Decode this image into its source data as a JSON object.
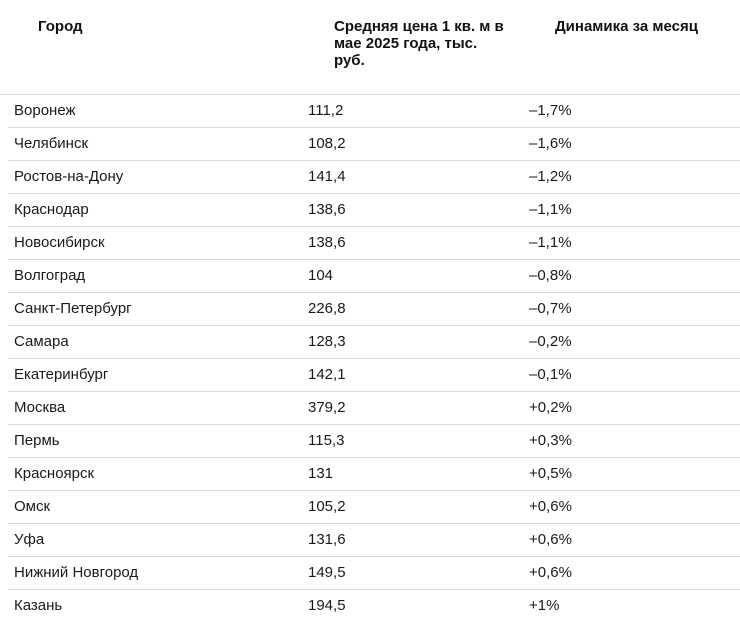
{
  "table": {
    "headers": {
      "city": "Город",
      "price": "Средняя цена 1 кв. м в мае 2025 года, тыс. руб.",
      "dynamics": "Динамика за месяц"
    },
    "rows": [
      {
        "city": "Воронеж",
        "price": "111,2",
        "dynamics": "–1,7%"
      },
      {
        "city": "Челябинск",
        "price": "108,2",
        "dynamics": "–1,6%"
      },
      {
        "city": "Ростов-на-Дону",
        "price": "141,4",
        "dynamics": "–1,2%"
      },
      {
        "city": "Краснодар",
        "price": "138,6",
        "dynamics": "–1,1%"
      },
      {
        "city": "Новосибирск",
        "price": "138,6",
        "dynamics": "–1,1%"
      },
      {
        "city": "Волгоград",
        "price": "104",
        "dynamics": "–0,8%"
      },
      {
        "city": "Санкт-Петербург",
        "price": "226,8",
        "dynamics": "–0,7%"
      },
      {
        "city": "Самара",
        "price": "128,3",
        "dynamics": "–0,2%"
      },
      {
        "city": "Екатеринбург",
        "price": "142,1",
        "dynamics": "–0,1%"
      },
      {
        "city": "Москва",
        "price": "379,2",
        "dynamics": "+0,2%"
      },
      {
        "city": "Пермь",
        "price": "115,3",
        "dynamics": "+0,3%"
      },
      {
        "city": "Красноярск",
        "price": "131",
        "dynamics": "+0,5%"
      },
      {
        "city": "Омск",
        "price": "105,2",
        "dynamics": "+0,6%"
      },
      {
        "city": "Уфа",
        "price": "131,6",
        "dynamics": "+0,6%"
      },
      {
        "city": "Нижний Новгород",
        "price": "149,5",
        "dynamics": "+0,6%"
      },
      {
        "city": "Казань",
        "price": "194,5",
        "dynamics": "+1%"
      }
    ]
  }
}
